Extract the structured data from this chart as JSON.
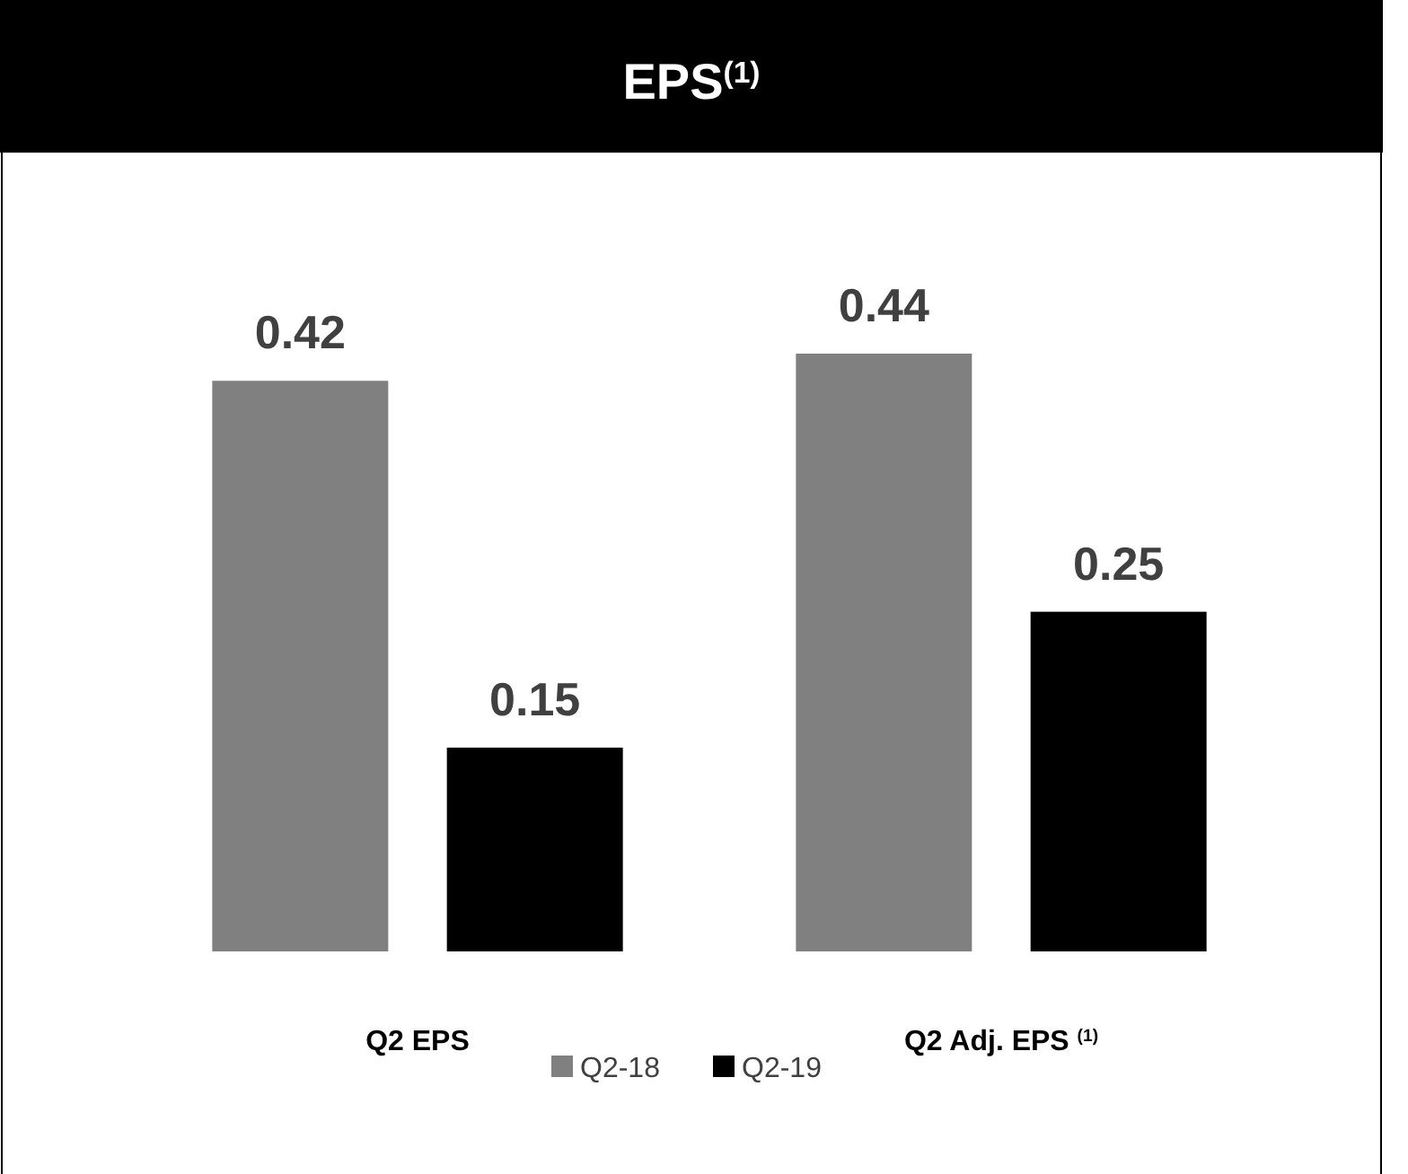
{
  "chart_data": {
    "type": "bar",
    "title": "EPS$^{(1)}$",
    "categories": [
      "Q2 EPS",
      "Q2 Adj. EPS $^{(1)}$"
    ],
    "series": [
      {
        "name": "Q2-18",
        "color": "#808080",
        "values": [
          0.42,
          0.44
        ]
      },
      {
        "name": "Q2-19",
        "color": "#000000",
        "values": [
          0.15,
          0.25
        ]
      }
    ],
    "data_labels": true,
    "legend": "bottom",
    "grid": false
  }
}
